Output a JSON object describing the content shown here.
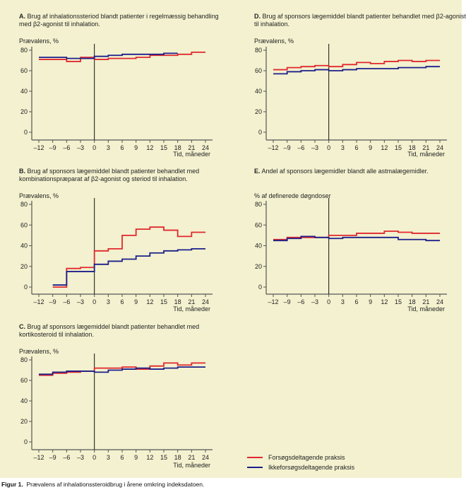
{
  "figure_caption": {
    "label": "Figur 1.",
    "text": "Prævalens af inhalationssteroidbrug i årene omkring indeksdatoen."
  },
  "legend": [
    {
      "name": "Forsøgsdeltagende praksis",
      "color": "#e0282e"
    },
    {
      "name": "Ikkeforsøgsdeltagende praksis",
      "color": "#1c1f8a"
    }
  ],
  "chart_data": [
    {
      "id": "A",
      "type": "line",
      "step": true,
      "title_label": "A.",
      "title": "Brug af inhalationssteriod blandt patienter i regelmæssig behandling med β2-agonist til inhalation.",
      "ylabel": "Prævalens, %",
      "xlabel": "Tid, måneder",
      "ylim": [
        0,
        80
      ],
      "yticks": [
        0,
        20,
        40,
        60,
        80
      ],
      "xticks": [
        -12,
        -9,
        -6,
        -3,
        0,
        3,
        6,
        9,
        12,
        15,
        18,
        21,
        24
      ],
      "xtick_labels": [
        "–12",
        "–9",
        "–6",
        "–3",
        "0",
        "3",
        "6",
        "9",
        "12",
        "15",
        "18",
        "21",
        "24"
      ],
      "series": [
        {
          "name": "Forsøgsdeltagende praksis",
          "x": [
            -12,
            -9,
            -6,
            -3,
            0,
            3,
            6,
            9,
            12,
            15,
            18,
            21,
            24
          ],
          "values": [
            71,
            71,
            69,
            73,
            71,
            72,
            72,
            73,
            75,
            75,
            76,
            78,
            78
          ]
        },
        {
          "name": "Ikkeforsøgsdeltagende praksis",
          "x": [
            -12,
            -9,
            -6,
            -3,
            0,
            3,
            6,
            9,
            12,
            15,
            18
          ],
          "values": [
            73,
            73,
            72,
            72,
            74,
            75,
            76,
            76,
            76,
            77,
            77
          ]
        }
      ]
    },
    {
      "id": "B",
      "type": "line",
      "step": true,
      "title_label": "B.",
      "title": "Brug af sponsors lægemiddel blandt patienter behandlet med kombinationspræparat af β2-agonist og steriod til inhalation.",
      "ylabel": "Prævalens, %",
      "xlabel": "Tid, måneder",
      "ylim": [
        0,
        80
      ],
      "yticks": [
        0,
        20,
        40,
        60,
        80
      ],
      "xticks": [
        -12,
        -9,
        -6,
        -3,
        0,
        3,
        6,
        9,
        12,
        15,
        18,
        21,
        24
      ],
      "xtick_labels": [
        "–12",
        "–9",
        "–6",
        "–3",
        "0",
        "3",
        "6",
        "9",
        "12",
        "15",
        "18",
        "21",
        "24"
      ],
      "series": [
        {
          "name": "Forsøgsdeltagende praksis",
          "x": [
            -9,
            -6,
            -3,
            0,
            3,
            6,
            9,
            12,
            15,
            18,
            21,
            24
          ],
          "values": [
            0,
            18,
            19,
            35,
            37,
            50,
            56,
            58,
            55,
            49,
            53,
            53
          ]
        },
        {
          "name": "Ikkeforsøgsdeltagende praksis",
          "x": [
            -9,
            -6,
            -3,
            0,
            3,
            6,
            9,
            12,
            15,
            18,
            21,
            24
          ],
          "values": [
            2,
            15,
            15,
            22,
            25,
            27,
            30,
            33,
            35,
            36,
            37,
            37
          ]
        }
      ]
    },
    {
      "id": "C",
      "type": "line",
      "step": true,
      "title_label": "C.",
      "title": "Brug af sponsors lægemiddel blandt patienter behandlet med kortikosteroid til inhalation.",
      "ylabel": "Prævalens, %",
      "xlabel": "Tid, måneder",
      "ylim": [
        0,
        80
      ],
      "yticks": [
        0,
        20,
        40,
        60,
        80
      ],
      "xticks": [
        -12,
        -9,
        -6,
        -3,
        0,
        3,
        6,
        9,
        12,
        15,
        18,
        21,
        24
      ],
      "xtick_labels": [
        "–12",
        "–9",
        "–6",
        "–3",
        "0",
        "3",
        "6",
        "9",
        "12",
        "15",
        "18",
        "21",
        "24"
      ],
      "series": [
        {
          "name": "Forsøgsdeltagende praksis",
          "x": [
            -12,
            -9,
            -6,
            -3,
            0,
            3,
            6,
            9,
            12,
            15,
            18,
            21,
            24
          ],
          "values": [
            65,
            67,
            68,
            69,
            72,
            72,
            73,
            71,
            74,
            77,
            75,
            77,
            77
          ]
        },
        {
          "name": "Ikkeforsøgsdeltagende praksis",
          "x": [
            -12,
            -9,
            -6,
            -3,
            0,
            3,
            6,
            9,
            12,
            15,
            18,
            21,
            24
          ],
          "values": [
            66,
            68,
            69,
            69,
            68,
            70,
            71,
            72,
            71,
            72,
            73,
            73,
            73
          ]
        }
      ]
    },
    {
      "id": "D",
      "type": "line",
      "step": true,
      "title_label": "D.",
      "title": "Brug af sponsors lægemiddel blandt patienter behandlet med β2-agonist til inhalation.",
      "ylabel": "Prævalens, %",
      "xlabel": "Tid, måneder",
      "ylim": [
        0,
        80
      ],
      "yticks": [
        0,
        20,
        40,
        60,
        80
      ],
      "xticks": [
        -12,
        -9,
        -6,
        -3,
        0,
        3,
        6,
        9,
        12,
        15,
        18,
        21,
        24
      ],
      "xtick_labels": [
        "–12",
        "–9",
        "–6",
        "–3",
        "0",
        "3",
        "6",
        "9",
        "12",
        "15",
        "18",
        "21",
        "24"
      ],
      "series": [
        {
          "name": "Forsøgsdeltagende praksis",
          "x": [
            -12,
            -9,
            -6,
            -3,
            0,
            3,
            6,
            9,
            12,
            15,
            18,
            21,
            24
          ],
          "values": [
            61,
            63,
            64,
            65,
            64,
            66,
            68,
            67,
            69,
            70,
            69,
            70,
            70
          ]
        },
        {
          "name": "Ikkeforsøgsdeltagende praksis",
          "x": [
            -12,
            -9,
            -6,
            -3,
            0,
            3,
            6,
            9,
            12,
            15,
            18,
            21,
            24
          ],
          "values": [
            57,
            59,
            60,
            61,
            60,
            61,
            62,
            62,
            62,
            63,
            63,
            64,
            64
          ]
        }
      ]
    },
    {
      "id": "E",
      "type": "line",
      "step": true,
      "title_label": "E.",
      "title": "Andel af sponsors lægemidler blandt alle astmalægemidler.",
      "ylabel": "% af definerede døgndoser",
      "xlabel": "Tid, måneder",
      "ylim": [
        0,
        80
      ],
      "yticks": [
        0,
        20,
        40,
        60,
        80
      ],
      "xticks": [
        -12,
        -9,
        -6,
        -3,
        0,
        3,
        6,
        9,
        12,
        15,
        18,
        21,
        24
      ],
      "xtick_labels": [
        "–12",
        "–9",
        "–6",
        "–3",
        "0",
        "3",
        "6",
        "9",
        "12",
        "15",
        "18",
        "21",
        "24"
      ],
      "series": [
        {
          "name": "Forsøgsdeltagende praksis",
          "x": [
            -12,
            -9,
            -6,
            -3,
            0,
            3,
            6,
            9,
            12,
            15,
            18,
            21,
            24
          ],
          "values": [
            46,
            48,
            48,
            48,
            50,
            50,
            52,
            52,
            54,
            53,
            52,
            52,
            52
          ]
        },
        {
          "name": "Ikkeforsøgsdeltagende praksis",
          "x": [
            -12,
            -9,
            -6,
            -3,
            0,
            3,
            6,
            9,
            12,
            15,
            18,
            21,
            24
          ],
          "values": [
            45,
            47,
            49,
            48,
            47,
            48,
            48,
            48,
            48,
            46,
            46,
            45,
            45
          ]
        }
      ]
    }
  ]
}
